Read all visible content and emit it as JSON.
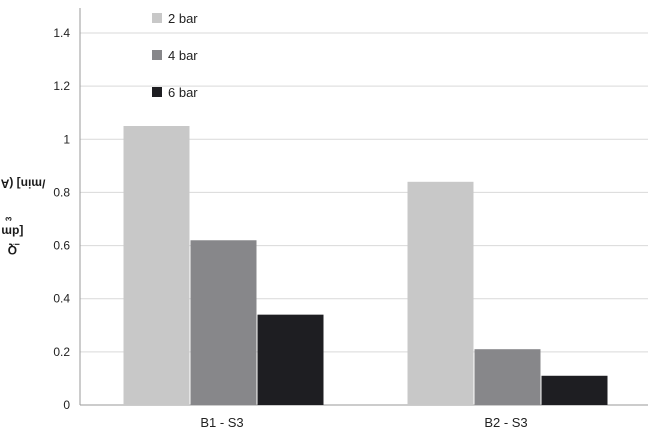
{
  "chart_data": {
    "type": "bar",
    "categories": [
      "B1 - S3",
      "B2 - S3"
    ],
    "series": [
      {
        "name": "2 bar",
        "values": [
          1.05,
          0.84
        ],
        "color": "#c8c8c8"
      },
      {
        "name": "4 bar",
        "values": [
          0.62,
          0.21
        ],
        "color": "#87878a"
      },
      {
        "name": "6 bar",
        "values": [
          0.34,
          0.11
        ],
        "color": "#1e1e22"
      }
    ],
    "ylim": [
      0,
      1.4
    ],
    "yticks": [
      "0",
      "0.2",
      "0.4",
      "0.6",
      "0.8",
      "1",
      "1.2",
      "1.4"
    ],
    "ylabel_parts": {
      "prefix": "Q",
      "sub": "i",
      "mid": " [dm",
      "sup": "3",
      "suffix": "/min] (ANR)"
    },
    "grid": true,
    "legend_position": "top-left"
  }
}
